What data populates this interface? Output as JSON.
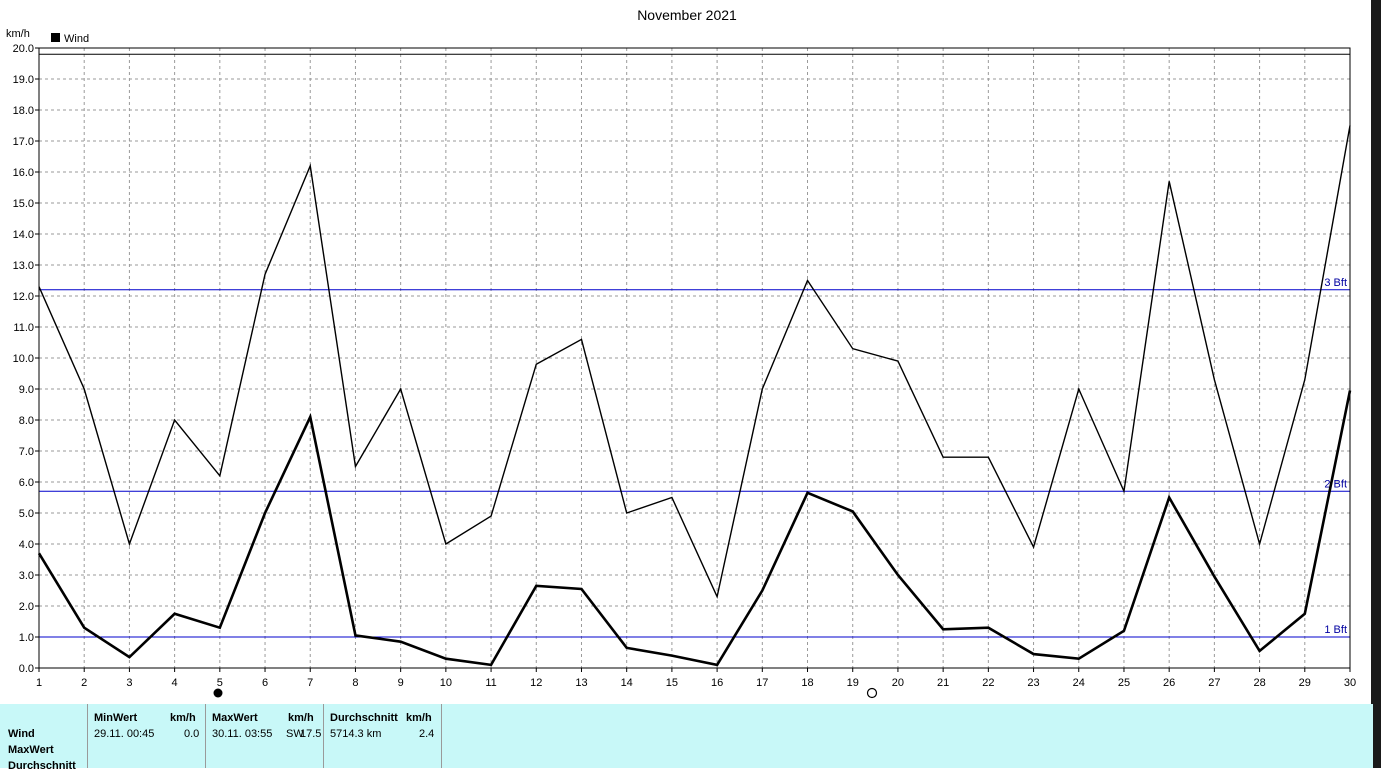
{
  "chart_data": {
    "type": "line",
    "title": "November 2021",
    "ylabel": "km/h",
    "xlabel": "",
    "x": [
      1,
      2,
      3,
      4,
      5,
      6,
      7,
      8,
      9,
      10,
      11,
      12,
      13,
      14,
      15,
      16,
      17,
      18,
      19,
      20,
      21,
      22,
      23,
      24,
      25,
      26,
      27,
      28,
      29,
      30
    ],
    "ylim": [
      0,
      20
    ],
    "xlim": [
      1,
      30
    ],
    "y_ticks": [
      "0.0",
      "1.0",
      "2.0",
      "3.0",
      "4.0",
      "5.0",
      "6.0",
      "7.0",
      "8.0",
      "9.0",
      "10.0",
      "11.0",
      "12.0",
      "13.0",
      "14.0",
      "15.0",
      "16.0",
      "17.0",
      "18.0",
      "19.0",
      "20.0"
    ],
    "x_ticks": [
      "1",
      "2",
      "3",
      "4",
      "5",
      "6",
      "7",
      "8",
      "9",
      "10",
      "11",
      "12",
      "13",
      "14",
      "15",
      "16",
      "17",
      "18",
      "19",
      "20",
      "21",
      "22",
      "23",
      "24",
      "25",
      "26",
      "27",
      "28",
      "29",
      "30"
    ],
    "legend": {
      "entries": [
        "Wind"
      ],
      "placement": "top-left"
    },
    "grid": true,
    "series": [
      {
        "name": "Wind",
        "style": "bold",
        "values": [
          3.7,
          1.3,
          0.35,
          1.75,
          1.3,
          5.0,
          8.1,
          1.05,
          0.85,
          0.3,
          0.1,
          2.65,
          2.55,
          0.65,
          0.4,
          0.1,
          2.5,
          5.65,
          5.05,
          3.0,
          1.25,
          1.3,
          0.45,
          0.3,
          1.2,
          5.5,
          2.95,
          0.55,
          1.75,
          8.95
        ]
      },
      {
        "style": "thin",
        "values": [
          12.3,
          9.0,
          4.0,
          8.0,
          6.2,
          12.7,
          16.2,
          6.5,
          9.0,
          4.0,
          4.9,
          9.8,
          10.6,
          5.0,
          5.5,
          2.3,
          9.0,
          12.5,
          10.3,
          9.9,
          6.8,
          6.8,
          3.9,
          9.0,
          5.7,
          15.7,
          9.3,
          4.0,
          9.3,
          17.5
        ]
      }
    ],
    "reference_lines": [
      {
        "label": "1 Bft",
        "value": 1.0,
        "color": "#0000cc"
      },
      {
        "label": "2 Bft",
        "value": 5.7,
        "color": "#0000cc"
      },
      {
        "label": "3 Bft",
        "value": 12.2,
        "color": "#0000cc"
      },
      {
        "label": "",
        "value": 19.8,
        "color": "#000000"
      }
    ]
  },
  "stats": {
    "rows": [
      "Wind",
      "MaxWert",
      "Durchschnitt"
    ],
    "min": {
      "header": "MinWert",
      "unit": "km/h",
      "datetime": "29.11.  00:45",
      "value": "0.0"
    },
    "max": {
      "header": "MaxWert",
      "unit": "km/h",
      "datetime": "30.11.  03:55",
      "dir": "SW",
      "value": "17.5"
    },
    "avg": {
      "header": "Durchschnitt",
      "unit": "km/h",
      "distance": "5714.3 km",
      "value": "2.4"
    }
  }
}
